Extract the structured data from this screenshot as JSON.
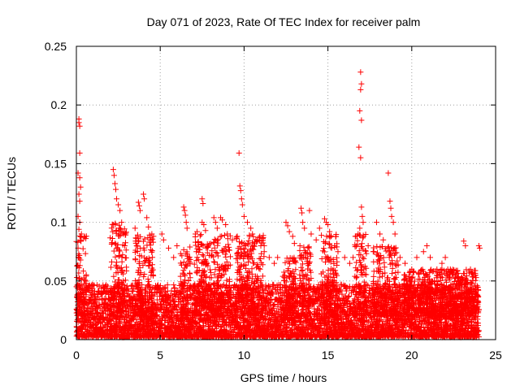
{
  "chart_data": {
    "type": "scatter",
    "title": "Day 071 of 2023, Rate Of TEC Index for receiver palm",
    "xlabel": "GPS time / hours",
    "ylabel": "ROTI / TECUs",
    "xlim": [
      0,
      25
    ],
    "ylim": [
      0,
      0.25
    ],
    "x_ticks": [
      0,
      5,
      10,
      15,
      20,
      25
    ],
    "x_tick_labels": [
      "0",
      "5",
      "10",
      "15",
      "20",
      "25"
    ],
    "y_ticks": [
      0,
      0.05,
      0.1,
      0.15,
      0.2,
      0.25
    ],
    "y_tick_labels": [
      "0",
      "0.05",
      "0.1",
      "0.15",
      "0.2",
      "0.25"
    ],
    "grid": true,
    "marker": "plus",
    "color": "#ff0000",
    "series": [
      {
        "name": "ROTI",
        "points": [
          [
            0.15,
            0.185
          ],
          [
            0.15,
            0.188
          ],
          [
            0.2,
            0.182
          ],
          [
            0.2,
            0.159
          ],
          [
            0.1,
            0.142
          ],
          [
            0.2,
            0.138
          ],
          [
            0.25,
            0.13
          ],
          [
            0.15,
            0.124
          ],
          [
            0.2,
            0.118
          ],
          [
            0.1,
            0.105
          ],
          [
            0.2,
            0.1
          ],
          [
            0.15,
            0.094
          ],
          [
            0.3,
            0.09
          ],
          [
            0.25,
            0.085
          ],
          [
            0.1,
            0.078
          ],
          [
            2.2,
            0.145
          ],
          [
            2.25,
            0.14
          ],
          [
            2.3,
            0.133
          ],
          [
            2.35,
            0.128
          ],
          [
            2.4,
            0.12
          ],
          [
            2.5,
            0.115
          ],
          [
            2.6,
            0.11
          ],
          [
            2.7,
            0.1
          ],
          [
            2.2,
            0.098
          ],
          [
            2.8,
            0.09
          ],
          [
            3.7,
            0.117
          ],
          [
            3.75,
            0.114
          ],
          [
            3.8,
            0.11
          ],
          [
            4.0,
            0.124
          ],
          [
            4.05,
            0.12
          ],
          [
            4.2,
            0.104
          ],
          [
            4.3,
            0.096
          ],
          [
            4.5,
            0.09
          ],
          [
            4.6,
            0.088
          ],
          [
            3.5,
            0.095
          ],
          [
            5.1,
            0.09
          ],
          [
            5.2,
            0.085
          ],
          [
            5.5,
            0.078
          ],
          [
            6.0,
            0.08
          ],
          [
            5.8,
            0.07
          ],
          [
            6.4,
            0.113
          ],
          [
            6.45,
            0.11
          ],
          [
            6.5,
            0.106
          ],
          [
            6.55,
            0.1
          ],
          [
            6.6,
            0.095
          ],
          [
            7.1,
            0.09
          ],
          [
            7.2,
            0.092
          ],
          [
            7.5,
            0.1
          ],
          [
            7.6,
            0.098
          ],
          [
            7.7,
            0.093
          ],
          [
            7.5,
            0.12
          ],
          [
            7.55,
            0.116
          ],
          [
            8.2,
            0.104
          ],
          [
            8.3,
            0.1
          ],
          [
            8.4,
            0.095
          ],
          [
            8.6,
            0.104
          ],
          [
            8.7,
            0.102
          ],
          [
            8.9,
            0.098
          ],
          [
            9.0,
            0.09
          ],
          [
            9.3,
            0.085
          ],
          [
            9.7,
            0.159
          ],
          [
            9.75,
            0.131
          ],
          [
            9.8,
            0.127
          ],
          [
            9.85,
            0.12
          ],
          [
            9.9,
            0.115
          ],
          [
            10.0,
            0.105
          ],
          [
            10.2,
            0.1
          ],
          [
            10.4,
            0.095
          ],
          [
            10.5,
            0.09
          ],
          [
            10.7,
            0.085
          ],
          [
            11.0,
            0.08
          ],
          [
            11.2,
            0.075
          ],
          [
            11.5,
            0.07
          ],
          [
            11.8,
            0.065
          ],
          [
            12.0,
            0.07
          ],
          [
            12.5,
            0.1
          ],
          [
            12.6,
            0.097
          ],
          [
            12.7,
            0.092
          ],
          [
            12.9,
            0.088
          ],
          [
            13.0,
            0.082
          ],
          [
            13.4,
            0.112
          ],
          [
            13.45,
            0.108
          ],
          [
            13.5,
            0.1
          ],
          [
            13.6,
            0.095
          ],
          [
            13.9,
            0.11
          ],
          [
            14.0,
            0.09
          ],
          [
            14.3,
            0.085
          ],
          [
            14.5,
            0.095
          ],
          [
            14.8,
            0.103
          ],
          [
            14.9,
            0.1
          ],
          [
            15.0,
            0.098
          ],
          [
            15.1,
            0.092
          ],
          [
            15.2,
            0.088
          ],
          [
            15.4,
            0.08
          ],
          [
            15.6,
            0.075
          ],
          [
            16.0,
            0.07
          ],
          [
            16.3,
            0.065
          ],
          [
            16.5,
            0.07
          ],
          [
            16.8,
            0.09
          ],
          [
            16.9,
            0.095
          ],
          [
            16.95,
            0.228
          ],
          [
            17.0,
            0.218
          ],
          [
            16.95,
            0.213
          ],
          [
            16.9,
            0.195
          ],
          [
            17.0,
            0.187
          ],
          [
            16.85,
            0.164
          ],
          [
            16.95,
            0.155
          ],
          [
            17.0,
            0.113
          ],
          [
            17.05,
            0.105
          ],
          [
            17.1,
            0.1
          ],
          [
            17.4,
            0.08
          ],
          [
            17.7,
            0.075
          ],
          [
            17.9,
            0.1
          ],
          [
            18.1,
            0.09
          ],
          [
            18.3,
            0.085
          ],
          [
            18.6,
            0.142
          ],
          [
            18.7,
            0.118
          ],
          [
            18.75,
            0.112
          ],
          [
            18.8,
            0.105
          ],
          [
            18.9,
            0.1
          ],
          [
            19.0,
            0.09
          ],
          [
            19.3,
            0.07
          ],
          [
            19.6,
            0.065
          ],
          [
            20.0,
            0.06
          ],
          [
            20.3,
            0.07
          ],
          [
            20.7,
            0.075
          ],
          [
            20.9,
            0.08
          ],
          [
            21.1,
            0.07
          ],
          [
            21.5,
            0.06
          ],
          [
            21.8,
            0.065
          ],
          [
            22.0,
            0.07
          ],
          [
            22.3,
            0.06
          ],
          [
            22.6,
            0.055
          ],
          [
            22.9,
            0.05
          ],
          [
            23.1,
            0.084
          ],
          [
            23.2,
            0.08
          ],
          [
            23.5,
            0.06
          ],
          [
            23.8,
            0.055
          ],
          [
            24.0,
            0.08
          ],
          [
            24.05,
            0.078
          ]
        ],
        "dense_band": {
          "x_range": [
            0,
            24
          ],
          "y_range": [
            0,
            0.05
          ],
          "description": "dense red cloud of points between 0 and ~0.05 across all hours"
        }
      }
    ]
  }
}
